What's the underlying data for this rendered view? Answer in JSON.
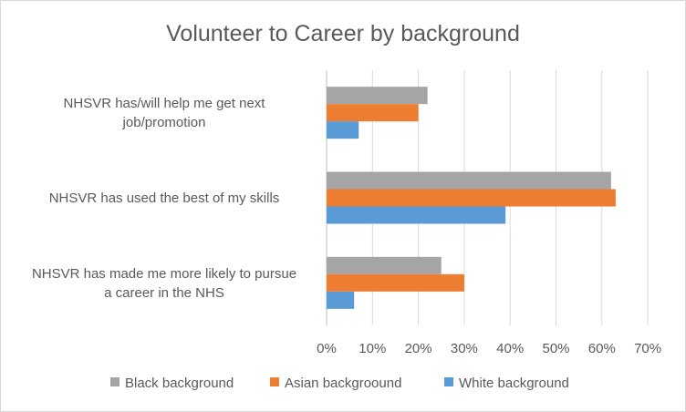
{
  "chart_data": {
    "type": "bar",
    "orientation": "horizontal",
    "title": "Volunteer to Career by background",
    "categories": [
      [
        "NHSVR has/will help me get next",
        "job/promotion"
      ],
      [
        "NHSVR has used the best of my skills"
      ],
      [
        "NHSVR has made me more likely to pursue",
        "a career in the NHS"
      ]
    ],
    "series": [
      {
        "name": "Black background",
        "color": "#a5a5a5",
        "values": [
          22,
          62,
          25
        ]
      },
      {
        "name": "Asian backgroound",
        "color": "#ed7d31",
        "values": [
          20,
          63,
          30
        ]
      },
      {
        "name": "White background",
        "color": "#5b9bd5",
        "values": [
          7,
          39,
          6
        ]
      }
    ],
    "xlim": [
      0,
      70
    ],
    "xticks": [
      "0%",
      "10%",
      "20%",
      "30%",
      "40%",
      "50%",
      "60%",
      "70%"
    ],
    "grid": true,
    "legend": "bottom"
  }
}
